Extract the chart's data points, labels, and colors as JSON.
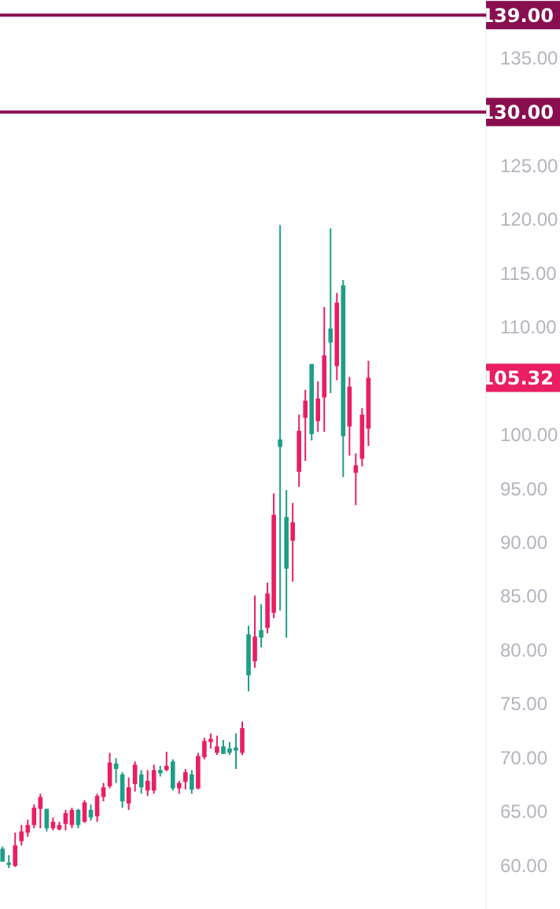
{
  "chart_data": {
    "type": "candlestick",
    "categories": [
      null,
      null,
      null,
      null,
      null,
      null,
      null,
      null,
      null,
      null,
      null,
      null,
      null,
      null,
      null,
      null,
      null,
      null,
      null,
      null,
      null,
      null,
      null,
      null,
      null,
      null,
      null,
      null,
      null,
      null,
      null,
      null,
      null,
      null,
      null,
      null,
      null,
      null,
      null,
      null,
      null,
      null,
      null,
      null,
      null,
      null,
      null,
      null,
      null,
      null,
      null,
      null,
      null,
      null,
      null,
      null,
      null,
      null,
      null,
      null,
      null,
      null,
      null,
      null,
      null,
      null,
      null,
      null,
      null,
      null,
      null,
      null,
      null,
      null,
      null,
      null,
      null
    ],
    "ohlc": [
      [
        61.6,
        61.8,
        60.4,
        60.4
      ],
      [
        60.3,
        61.0,
        59.8,
        60.1
      ],
      [
        60.0,
        63.1,
        59.9,
        61.9
      ],
      [
        62.3,
        63.8,
        61.9,
        63.2
      ],
      [
        63.1,
        64.3,
        62.7,
        63.8
      ],
      [
        63.8,
        65.7,
        63.5,
        65.4
      ],
      [
        65.3,
        66.7,
        63.5,
        66.4
      ],
      [
        65.3,
        65.3,
        63.2,
        63.5
      ],
      [
        63.5,
        64.5,
        63.3,
        64.1
      ],
      [
        63.4,
        64.1,
        63.3,
        63.8
      ],
      [
        63.9,
        65.2,
        63.3,
        64.9
      ],
      [
        63.8,
        65.4,
        63.5,
        65.2
      ],
      [
        65.2,
        65.3,
        63.5,
        63.8
      ],
      [
        64.1,
        66.1,
        64.0,
        65.9
      ],
      [
        65.2,
        65.7,
        64.2,
        64.5
      ],
      [
        64.6,
        66.7,
        64.1,
        66.5
      ],
      [
        66.4,
        67.7,
        66.0,
        67.3
      ],
      [
        67.4,
        70.5,
        67.2,
        69.6
      ],
      [
        69.5,
        70.0,
        67.7,
        69.0
      ],
      [
        68.5,
        68.7,
        65.4,
        66.0
      ],
      [
        65.8,
        68.2,
        65.2,
        67.3
      ],
      [
        67.6,
        69.7,
        66.9,
        69.4
      ],
      [
        68.5,
        68.9,
        66.7,
        67.3
      ],
      [
        67.0,
        68.9,
        66.5,
        67.9
      ],
      [
        67.0,
        69.4,
        66.7,
        68.9
      ],
      [
        68.9,
        69.3,
        68.3,
        68.6
      ],
      [
        68.9,
        70.6,
        68.8,
        69.3
      ],
      [
        69.7,
        69.9,
        67.0,
        67.2
      ],
      [
        67.2,
        67.9,
        66.7,
        67.7
      ],
      [
        67.8,
        69.0,
        67.1,
        68.7
      ],
      [
        68.5,
        68.9,
        66.7,
        67.1
      ],
      [
        67.2,
        70.5,
        67.1,
        70.2
      ],
      [
        70.1,
        71.9,
        69.9,
        71.6
      ],
      [
        71.5,
        72.3,
        70.9,
        71.8
      ],
      [
        70.5,
        72.1,
        70.3,
        71.1
      ],
      [
        71.1,
        71.7,
        70.4,
        70.4
      ],
      [
        70.9,
        71.5,
        70.3,
        70.5
      ],
      [
        71.0,
        72.3,
        69.0,
        70.7
      ],
      [
        70.5,
        73.4,
        70.3,
        72.8
      ],
      [
        81.5,
        82.3,
        76.2,
        77.7
      ],
      [
        79.0,
        85.1,
        78.4,
        81.3
      ],
      [
        81.9,
        84.3,
        80.3,
        81.2
      ],
      [
        82.1,
        86.3,
        81.6,
        85.3
      ],
      [
        83.5,
        94.6,
        83.0,
        92.6
      ],
      [
        99.6,
        119.5,
        83.7,
        98.9
      ],
      [
        92.4,
        94.9,
        81.2,
        87.6
      ],
      [
        90.2,
        93.7,
        86.4,
        91.9
      ],
      [
        96.6,
        101.9,
        95.2,
        100.4
      ],
      [
        101.6,
        104.2,
        97.6,
        103.2
      ],
      [
        106.6,
        106.6,
        99.5,
        100.1
      ],
      [
        101.3,
        105.0,
        100.3,
        103.4
      ],
      [
        103.5,
        111.9,
        100.3,
        107.4
      ],
      [
        109.9,
        119.2,
        103.9,
        108.6
      ],
      [
        106.4,
        113.2,
        105.1,
        112.3
      ],
      [
        113.9,
        114.4,
        96.1,
        99.9
      ],
      [
        100.8,
        105.4,
        98.1,
        104.5
      ],
      [
        96.5,
        98.3,
        93.5,
        97.2
      ],
      [
        97.8,
        102.5,
        97.1,
        101.9
      ],
      [
        100.6,
        106.9,
        99.0,
        105.32
      ],
      null,
      null,
      null,
      null,
      null,
      null,
      null,
      null,
      null,
      null,
      null,
      null,
      null,
      null,
      null,
      null,
      null,
      null
    ],
    "colors": [
      "#1e9e88",
      "#1e9e88",
      "#e91e63",
      "#e91e63",
      "#e91e63",
      "#e91e63",
      "#e91e63",
      "#1e9e88",
      "#e91e63",
      "#e91e63",
      "#e91e63",
      "#e91e63",
      "#1e9e88",
      "#e91e63",
      "#1e9e88",
      "#e91e63",
      "#e91e63",
      "#e91e63",
      "#1e9e88",
      "#1e9e88",
      "#e91e63",
      "#e91e63",
      "#1e9e88",
      "#e91e63",
      "#e91e63",
      "#1e9e88",
      "#e91e63",
      "#1e9e88",
      "#e91e63",
      "#e91e63",
      "#1e9e88",
      "#e91e63",
      "#e91e63",
      "#e91e63",
      "#e91e63",
      "#1e9e88",
      "#1e9e88",
      "#1e9e88",
      "#e91e63",
      "#1e9e88",
      "#e91e63",
      "#1e9e88",
      "#e91e63",
      "#e91e63",
      "#1e9e88",
      "#1e9e88",
      "#e91e63",
      "#e91e63",
      "#e91e63",
      "#1e9e88",
      "#e91e63",
      "#e91e63",
      "#1e9e88",
      "#e91e63",
      "#1e9e88",
      "#e91e63",
      "#e91e63",
      "#e91e63",
      "#e91e63",
      null,
      null,
      null,
      null,
      null,
      null,
      null,
      null,
      null,
      null,
      null,
      null,
      null,
      null,
      null,
      null,
      null,
      null
    ],
    "ylim": [
      56,
      140.4
    ],
    "yticks": [
      {
        "value": 60,
        "label": "60.00"
      },
      {
        "value": 65,
        "label": "65.00"
      },
      {
        "value": 70,
        "label": "70.00"
      },
      {
        "value": 75,
        "label": "75.00"
      },
      {
        "value": 80,
        "label": "80.00"
      },
      {
        "value": 85,
        "label": "85.00"
      },
      {
        "value": 90,
        "label": "90.00"
      },
      {
        "value": 95,
        "label": "95.00"
      },
      {
        "value": 100,
        "label": "100.00"
      },
      {
        "value": 110,
        "label": "110.00"
      },
      {
        "value": 115,
        "label": "115.00"
      },
      {
        "value": 120,
        "label": "120.00"
      },
      {
        "value": 125,
        "label": "125.00"
      },
      {
        "value": 135,
        "label": "135.00"
      }
    ],
    "tick_labels": "y",
    "grid": false,
    "ref_lines": [
      {
        "axis": "y",
        "value": 139,
        "label": "139.00",
        "color": "#880e4f"
      },
      {
        "axis": "y",
        "value": 130,
        "label": "130.00",
        "color": "#880e4f"
      }
    ],
    "annotations": [
      "105.32"
    ]
  }
}
